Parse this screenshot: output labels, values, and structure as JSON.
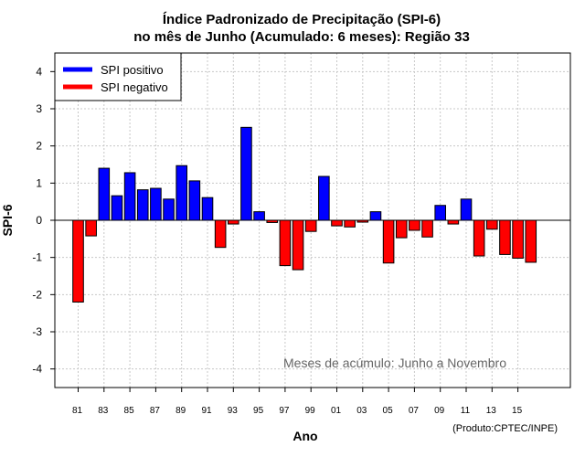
{
  "chart_data": {
    "type": "bar",
    "title": "Índice Padronizado de Precipitação (SPI-6)",
    "subtitle": "no mês de Junho (Acumulado: 6 meses): Região 33",
    "xlabel": "Ano",
    "ylabel": "SPI-6",
    "ylim": [
      -4.5,
      4.5
    ],
    "yticks": [
      -4,
      -3,
      -2,
      -1,
      0,
      1,
      2,
      3,
      4
    ],
    "grid": true,
    "legend_position": "top-left",
    "years": [
      1981,
      1982,
      1983,
      1984,
      1985,
      1986,
      1987,
      1988,
      1989,
      1990,
      1991,
      1992,
      1993,
      1994,
      1995,
      1996,
      1997,
      1998,
      1999,
      2000,
      2001,
      2002,
      2003,
      2004,
      2005,
      2006,
      2007,
      2008,
      2009,
      2010,
      2011,
      2012,
      2013,
      2014,
      2015,
      2016
    ],
    "tick_labels": [
      "81",
      "83",
      "85",
      "87",
      "89",
      "91",
      "93",
      "95",
      "97",
      "99",
      "01",
      "03",
      "05",
      "07",
      "09",
      "11",
      "13",
      "15"
    ],
    "values": [
      -2.2,
      -0.42,
      1.4,
      0.66,
      1.28,
      0.82,
      0.86,
      0.57,
      1.47,
      1.06,
      0.61,
      -0.73,
      -0.1,
      2.5,
      0.23,
      -0.06,
      -1.22,
      -1.33,
      -0.3,
      1.18,
      -0.15,
      -0.18,
      -0.05,
      0.23,
      -1.15,
      -0.47,
      -0.27,
      -0.45,
      0.4,
      -0.1,
      0.57,
      -0.96,
      -0.24,
      -0.92,
      -1.02,
      -1.13
    ],
    "positive_color": "#0000ff",
    "negative_color": "#ff0000",
    "legend": [
      {
        "label": "SPI positivo",
        "color": "#0000ff"
      },
      {
        "label": "SPI negativo",
        "color": "#ff0000"
      }
    ],
    "annotation": "Meses de acúmulo: Junho a Novembro",
    "credit": "(Produto:CPTEC/INPE)"
  }
}
